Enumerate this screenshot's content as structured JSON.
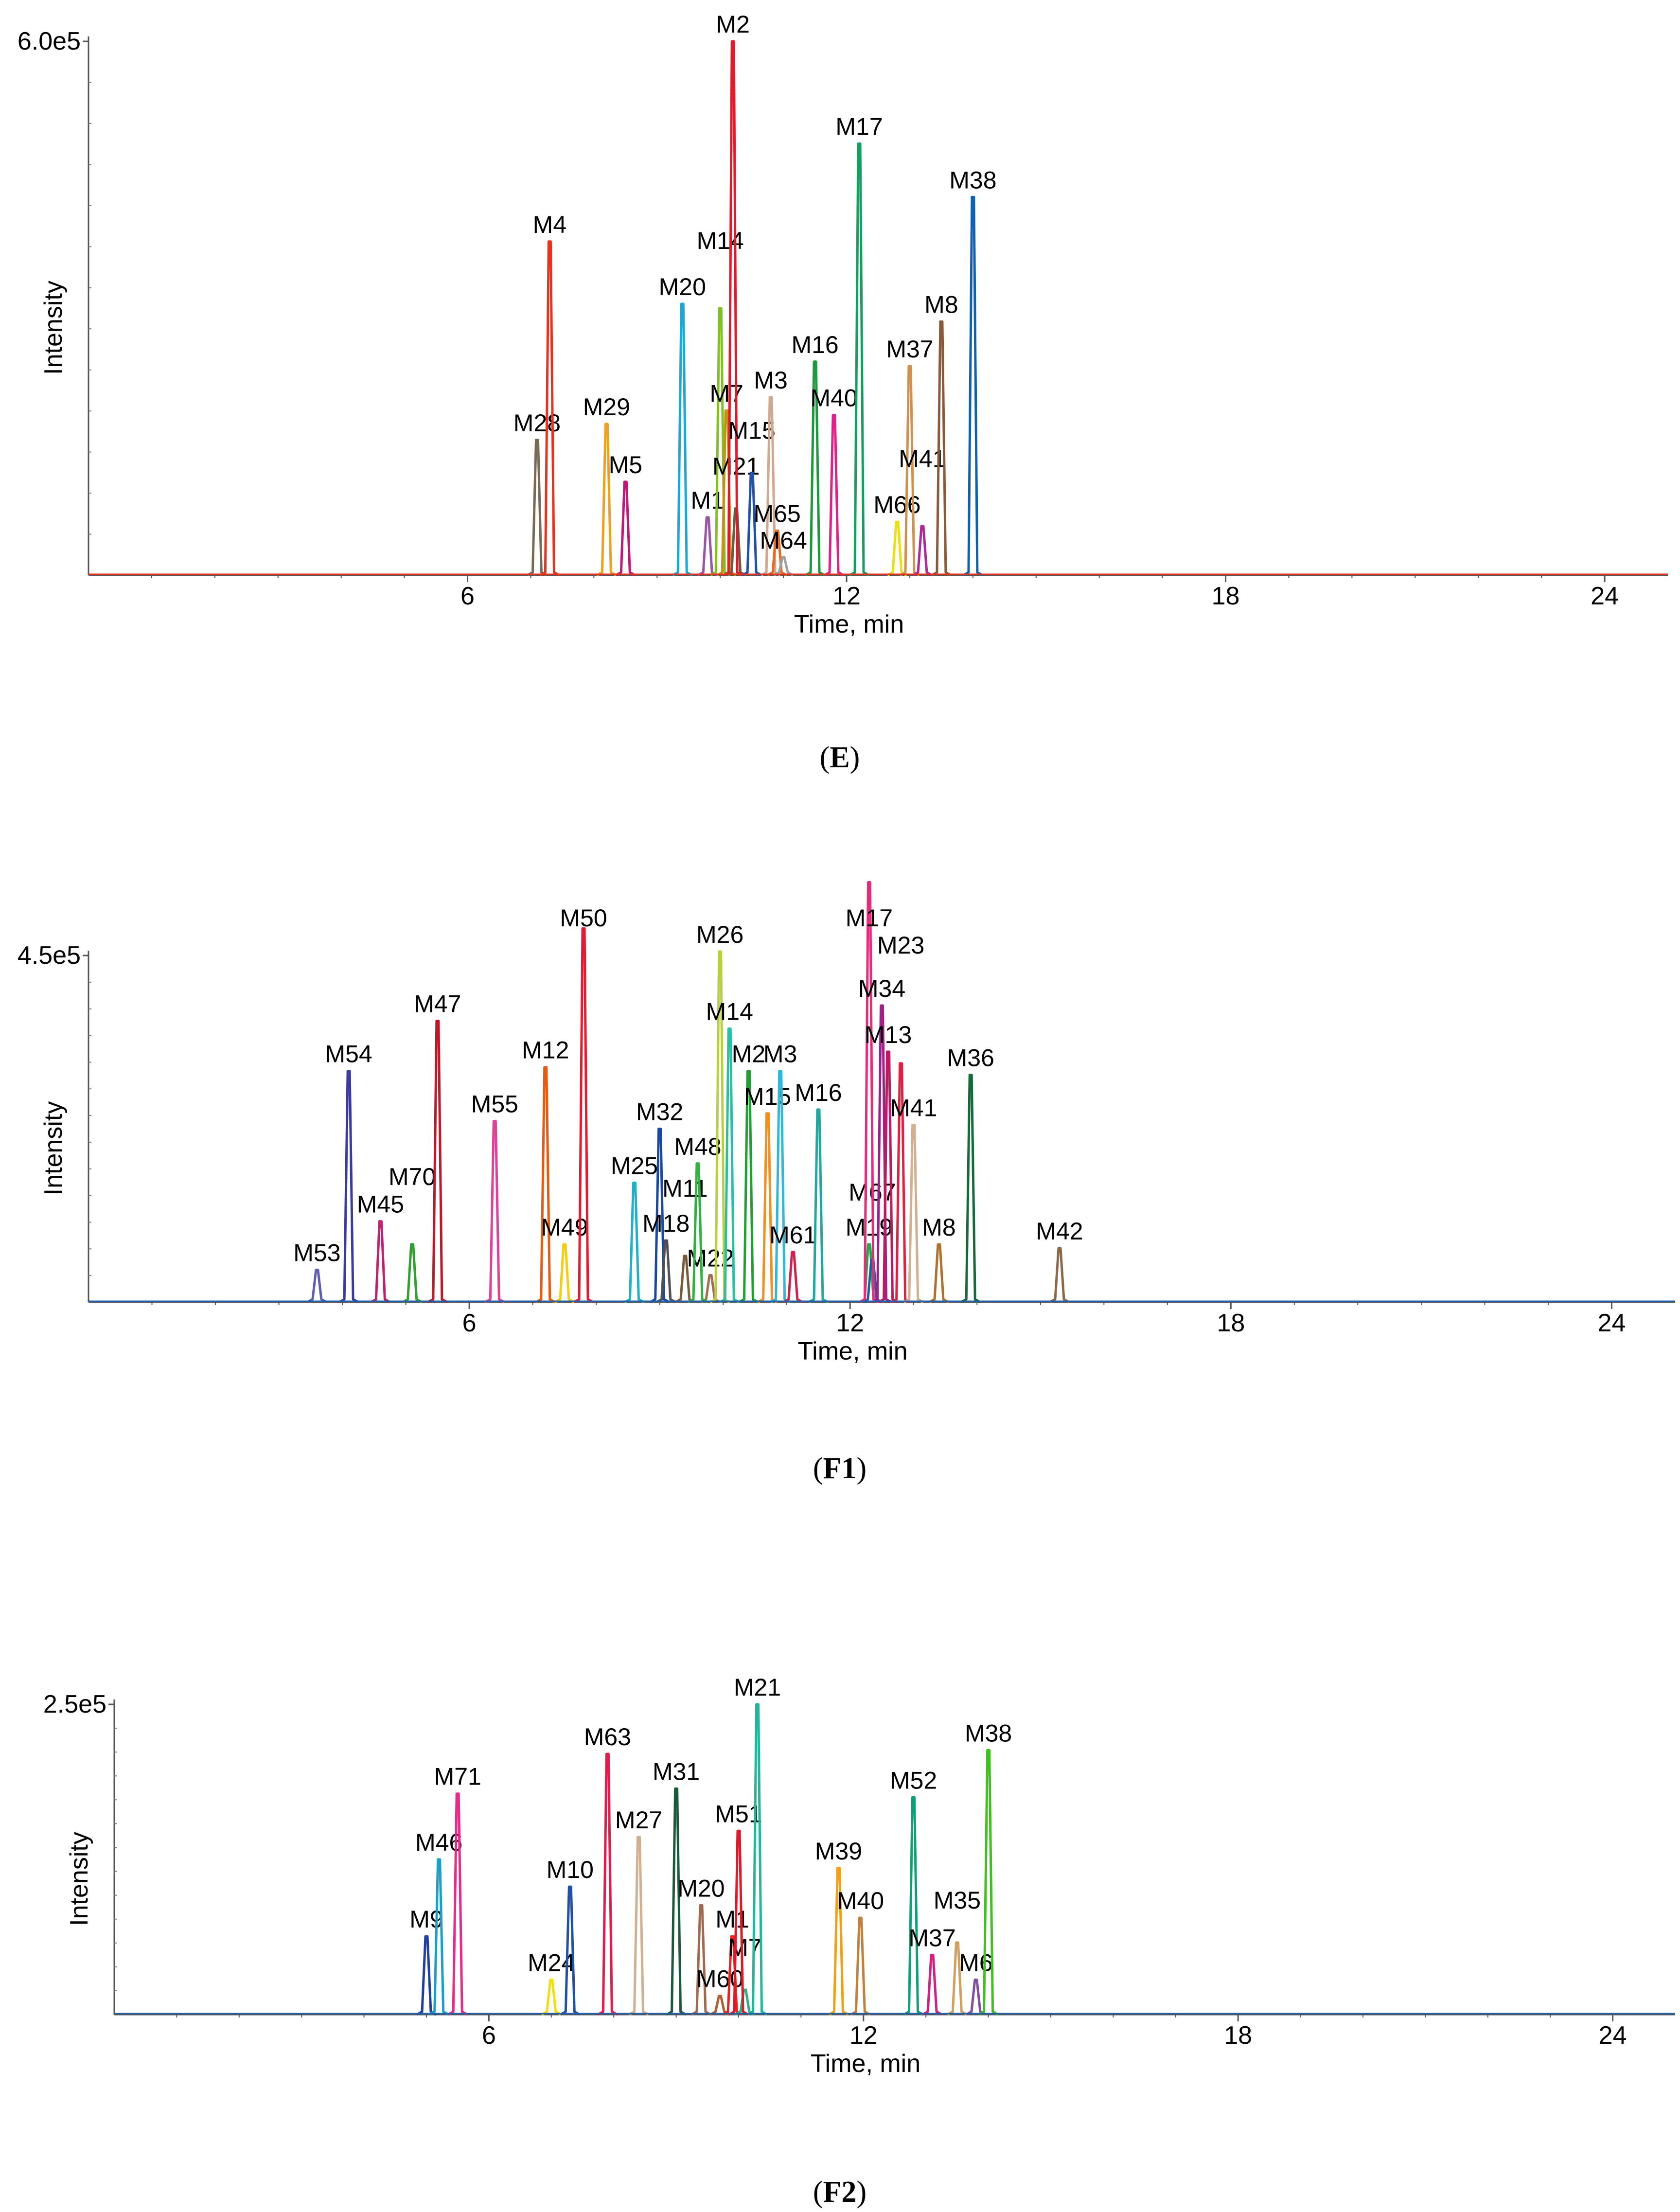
{
  "figure": {
    "panel_captions": [
      "E",
      "F1",
      "F2"
    ]
  },
  "chart_data": [
    {
      "type": "line",
      "title": "(E)",
      "caption": "E",
      "xlabel": "Time, min",
      "ylabel": "Intensity",
      "y_max_label": "6.0e5",
      "ymax": 600000,
      "xlim": [
        0,
        25
      ],
      "xticks": [
        6,
        12,
        18,
        24
      ],
      "series": [
        {
          "name": "M28",
          "rt": 7.1,
          "intensity": 152000,
          "color": "#7a6a55"
        },
        {
          "name": "M4",
          "rt": 7.3,
          "intensity": 375000,
          "color": "#e8321e"
        },
        {
          "name": "M29",
          "rt": 8.2,
          "intensity": 170000,
          "color": "#f0a020"
        },
        {
          "name": "M5",
          "rt": 8.5,
          "intensity": 105000,
          "color": "#c0187a"
        },
        {
          "name": "M20",
          "rt": 9.4,
          "intensity": 305000,
          "color": "#1aa8d8"
        },
        {
          "name": "M1",
          "rt": 9.8,
          "intensity": 65000,
          "color": "#9a55a5"
        },
        {
          "name": "M14",
          "rt": 10.0,
          "intensity": 300000,
          "color": "#80c020"
        },
        {
          "name": "M7",
          "rt": 10.1,
          "intensity": 185000,
          "color": "#c89018"
        },
        {
          "name": "M21",
          "rt": 10.25,
          "intensity": 75000,
          "color": "#6a5a48"
        },
        {
          "name": "M2",
          "rt": 10.2,
          "intensity": 600000,
          "color": "#e01a2a"
        },
        {
          "name": "M15",
          "rt": 10.5,
          "intensity": 115000,
          "color": "#2050a8"
        },
        {
          "name": "M3",
          "rt": 10.8,
          "intensity": 200000,
          "color": "#d0a890"
        },
        {
          "name": "M65",
          "rt": 10.9,
          "intensity": 50000,
          "color": "#e86a20"
        },
        {
          "name": "M64",
          "rt": 11.0,
          "intensity": 20000,
          "color": "#a0a0a0"
        },
        {
          "name": "M16",
          "rt": 11.5,
          "intensity": 240000,
          "color": "#1a9a3a"
        },
        {
          "name": "M40",
          "rt": 11.8,
          "intensity": 180000,
          "color": "#e0208a"
        },
        {
          "name": "M17",
          "rt": 12.2,
          "intensity": 485000,
          "color": "#12a060"
        },
        {
          "name": "M66",
          "rt": 12.8,
          "intensity": 60000,
          "color": "#e8e010"
        },
        {
          "name": "M37",
          "rt": 13.0,
          "intensity": 235000,
          "color": "#d09050"
        },
        {
          "name": "M41",
          "rt": 13.2,
          "intensity": 55000,
          "color": "#b02898"
        },
        {
          "name": "M8",
          "rt": 13.5,
          "intensity": 285000,
          "color": "#8a5a3a"
        },
        {
          "name": "M38",
          "rt": 14.0,
          "intensity": 425000,
          "color": "#1060b0"
        }
      ]
    },
    {
      "type": "line",
      "title": "(F1)",
      "caption": "F1",
      "xlabel": "Time, min",
      "ylabel": "Intensity",
      "y_max_label": "4.5e5",
      "ymax": 450000,
      "xlim": [
        0,
        25
      ],
      "xticks": [
        6,
        12,
        18,
        24
      ],
      "series": [
        {
          "name": "M53",
          "rt": 3.6,
          "intensity": 42000,
          "color": "#6060b0"
        },
        {
          "name": "M54",
          "rt": 4.1,
          "intensity": 300000,
          "color": "#3a3aa0"
        },
        {
          "name": "M45",
          "rt": 4.6,
          "intensity": 105000,
          "color": "#c02070"
        },
        {
          "name": "M70",
          "rt": 5.1,
          "intensity": 75000,
          "color": "#30a030"
        },
        {
          "name": "M47",
          "rt": 5.5,
          "intensity": 365000,
          "color": "#c0182a"
        },
        {
          "name": "M55",
          "rt": 6.4,
          "intensity": 235000,
          "color": "#e0409a"
        },
        {
          "name": "M12",
          "rt": 7.2,
          "intensity": 305000,
          "color": "#e85a10"
        },
        {
          "name": "M49",
          "rt": 7.5,
          "intensity": 75000,
          "color": "#f0d010"
        },
        {
          "name": "M50",
          "rt": 7.8,
          "intensity": 485000,
          "color": "#e81830"
        },
        {
          "name": "M25",
          "rt": 8.6,
          "intensity": 155000,
          "color": "#20b0c8"
        },
        {
          "name": "M32",
          "rt": 9.0,
          "intensity": 225000,
          "color": "#1848a0"
        },
        {
          "name": "M18",
          "rt": 9.1,
          "intensity": 80000,
          "color": "#505050"
        },
        {
          "name": "M22",
          "rt": 9.8,
          "intensity": 35000,
          "color": "#a07050"
        },
        {
          "name": "M11",
          "rt": 9.4,
          "intensity": 60000,
          "color": "#7a5a3a"
        },
        {
          "name": "M48",
          "rt": 9.6,
          "intensity": 180000,
          "color": "#30b040"
        },
        {
          "name": "M26",
          "rt": 9.95,
          "intensity": 455000,
          "color": "#b8d040"
        },
        {
          "name": "M14",
          "rt": 10.1,
          "intensity": 355000,
          "color": "#28c0a0"
        },
        {
          "name": "M2",
          "rt": 10.4,
          "intensity": 300000,
          "color": "#20a030"
        },
        {
          "name": "M15",
          "rt": 10.7,
          "intensity": 245000,
          "color": "#f09020"
        },
        {
          "name": "M3",
          "rt": 10.9,
          "intensity": 300000,
          "color": "#30b8d8"
        },
        {
          "name": "M61",
          "rt": 11.1,
          "intensity": 65000,
          "color": "#d02050"
        },
        {
          "name": "M16",
          "rt": 11.5,
          "intensity": 250000,
          "color": "#20a8a0"
        },
        {
          "name": "M19",
          "rt": 12.3,
          "intensity": 75000,
          "color": "#30a050"
        },
        {
          "name": "M67",
          "rt": 12.35,
          "intensity": 55000,
          "color": "#2060a0"
        },
        {
          "name": "M17",
          "rt": 12.3,
          "intensity": 545000,
          "color": "#e82a7a"
        },
        {
          "name": "M34",
          "rt": 12.5,
          "intensity": 385000,
          "color": "#a0208a"
        },
        {
          "name": "M13",
          "rt": 12.6,
          "intensity": 325000,
          "color": "#c01860"
        },
        {
          "name": "M23",
          "rt": 12.8,
          "intensity": 310000,
          "color": "#e02040"
        },
        {
          "name": "M41",
          "rt": 13.0,
          "intensity": 230000,
          "color": "#d0b090"
        },
        {
          "name": "M8",
          "rt": 13.4,
          "intensity": 75000,
          "color": "#b07030"
        },
        {
          "name": "M36",
          "rt": 13.9,
          "intensity": 295000,
          "color": "#156a3a"
        },
        {
          "name": "M42",
          "rt": 15.3,
          "intensity": 70000,
          "color": "#8a6a4a"
        }
      ]
    },
    {
      "type": "line",
      "title": "(F2)",
      "caption": "F2",
      "xlabel": "Time, min",
      "ylabel": "Intensity",
      "y_max_label": "2.5e5",
      "ymax": 250000,
      "xlim": [
        0,
        25
      ],
      "xticks": [
        6,
        12,
        18,
        24
      ],
      "series": [
        {
          "name": "M9",
          "rt": 5.0,
          "intensity": 63000,
          "color": "#2040a0"
        },
        {
          "name": "M46",
          "rt": 5.2,
          "intensity": 125000,
          "color": "#18a0c8"
        },
        {
          "name": "M71",
          "rt": 5.5,
          "intensity": 178000,
          "color": "#e82a8a"
        },
        {
          "name": "M24",
          "rt": 7.0,
          "intensity": 28000,
          "color": "#f0e010"
        },
        {
          "name": "M10",
          "rt": 7.3,
          "intensity": 103000,
          "color": "#2050a8"
        },
        {
          "name": "M63",
          "rt": 7.9,
          "intensity": 210000,
          "color": "#e81848"
        },
        {
          "name": "M27",
          "rt": 8.4,
          "intensity": 143000,
          "color": "#d0b090"
        },
        {
          "name": "M31",
          "rt": 9.0,
          "intensity": 182000,
          "color": "#1a5a3a"
        },
        {
          "name": "M20",
          "rt": 9.4,
          "intensity": 88000,
          "color": "#a06a50"
        },
        {
          "name": "M60",
          "rt": 9.7,
          "intensity": 15000,
          "color": "#b06030"
        },
        {
          "name": "M1",
          "rt": 9.9,
          "intensity": 63000,
          "color": "#e82020"
        },
        {
          "name": "M7",
          "rt": 10.1,
          "intensity": 20000,
          "color": "#30b080"
        },
        {
          "name": "M51",
          "rt": 10.0,
          "intensity": 148000,
          "color": "#e01828"
        },
        {
          "name": "M21",
          "rt": 10.3,
          "intensity": 250000,
          "color": "#20b898"
        },
        {
          "name": "M39",
          "rt": 11.6,
          "intensity": 118000,
          "color": "#f0a010"
        },
        {
          "name": "M40",
          "rt": 11.95,
          "intensity": 78000,
          "color": "#c08040"
        },
        {
          "name": "M52",
          "rt": 12.8,
          "intensity": 175000,
          "color": "#10a078"
        },
        {
          "name": "M37",
          "rt": 13.1,
          "intensity": 48000,
          "color": "#d02080"
        },
        {
          "name": "M35",
          "rt": 13.5,
          "intensity": 58000,
          "color": "#d0a060"
        },
        {
          "name": "M6",
          "rt": 13.8,
          "intensity": 28000,
          "color": "#8050a0"
        },
        {
          "name": "M38",
          "rt": 14.0,
          "intensity": 213000,
          "color": "#40c020"
        }
      ]
    }
  ]
}
